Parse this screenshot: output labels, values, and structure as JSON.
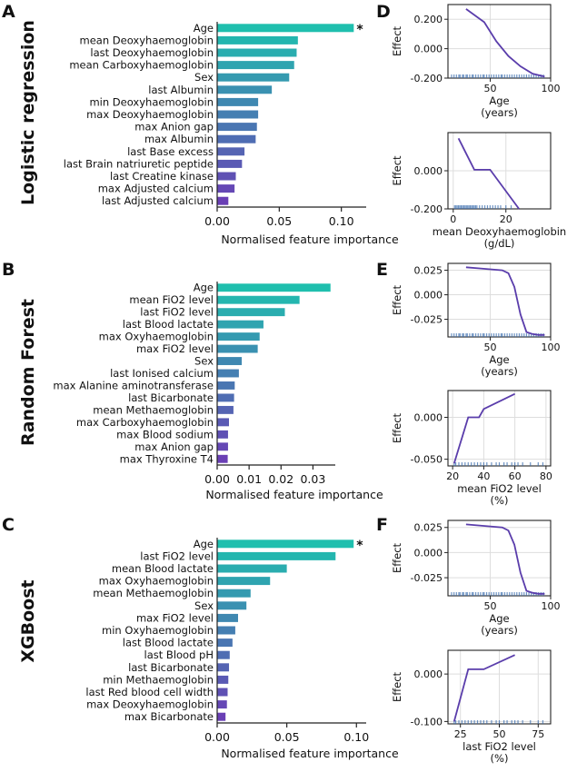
{
  "panel_letters": {
    "A": "A",
    "B": "B",
    "C": "C",
    "D": "D",
    "E": "E",
    "F": "F"
  },
  "row_labels": [
    "Logistic regression",
    "Random Forest",
    "XGBoost"
  ],
  "colors": {
    "bar_top": "#1fbfae",
    "bar_bottom": "#6a3fb5",
    "line": "#5a3dab",
    "rug": "#3d6fb0",
    "grid": "#dddddd",
    "axis": "#222222"
  },
  "chart_data": [
    {
      "id": "A",
      "type": "bar",
      "orientation": "horizontal",
      "categories": [
        "Age",
        "mean Deoxyhaemoglobin",
        "last Deoxyhaemoglobin",
        "mean Carboxyhaemoglobin",
        "Sex",
        "last Albumin",
        "min Deoxyhaemoglobin",
        "max Deoxyhaemoglobin",
        "max Anion gap",
        "max Albumin",
        "last Base excess",
        "last Brain natriuretic peptide",
        "last Creatine kinase",
        "max Adjusted calcium",
        "last Adjusted calcium"
      ],
      "values": [
        0.11,
        0.065,
        0.064,
        0.062,
        0.058,
        0.044,
        0.033,
        0.033,
        0.032,
        0.031,
        0.022,
        0.02,
        0.015,
        0.014,
        0.009
      ],
      "xlim": [
        0,
        0.12
      ],
      "xticks": [
        0.0,
        0.05,
        0.1
      ],
      "xticklabels": [
        "0.00",
        "0.05",
        "0.10"
      ],
      "xlabel": "Normalised feature importance",
      "marker": "*"
    },
    {
      "id": "B",
      "type": "bar",
      "orientation": "horizontal",
      "categories": [
        "Age",
        "mean FiO2 level",
        "last FiO2 level",
        "last Blood lactate",
        "max Oxyhaemoglobin",
        "max FiO2 level",
        "Sex",
        "last Ionised calcium",
        "max Alanine aminotransferase",
        "last Bicarbonate",
        "mean Methaemoglobin",
        "max Carboxyhaemoglobin",
        "max Blood sodium",
        "max Anion gap",
        "max Thyroxine T4"
      ],
      "values": [
        0.0355,
        0.0258,
        0.0212,
        0.0145,
        0.0133,
        0.0127,
        0.0077,
        0.0068,
        0.0055,
        0.0053,
        0.0051,
        0.0037,
        0.0034,
        0.0034,
        0.0033
      ],
      "xlim": [
        0,
        0.037
      ],
      "xticks": [
        0.0,
        0.01,
        0.02,
        0.03
      ],
      "xticklabels": [
        "0.00",
        "0.01",
        "0.02",
        "0.03"
      ],
      "xlabel": "Normalised feature importance"
    },
    {
      "id": "C",
      "type": "bar",
      "orientation": "horizontal",
      "categories": [
        "Age",
        "last FiO2 level",
        "mean Blood lactate",
        "max Oxyhaemoglobin",
        "mean Methaemoglobin",
        "Sex",
        "max FiO2 level",
        "min Oxyhaemoglobin",
        "last Blood lactate",
        "last Blood pH",
        "last Bicarbonate",
        "min Methaemoglobin",
        "last Red blood cell width",
        "max Deoxyhaemoglobin",
        "max Bicarbonate"
      ],
      "values": [
        0.098,
        0.085,
        0.05,
        0.038,
        0.024,
        0.021,
        0.015,
        0.013,
        0.011,
        0.009,
        0.0085,
        0.008,
        0.0075,
        0.007,
        0.006
      ],
      "xlim": [
        0,
        0.107
      ],
      "xticks": [
        0.0,
        0.05,
        0.1
      ],
      "xticklabels": [
        "0.00",
        "0.05",
        "0.10"
      ],
      "xlabel": "Normalised feature importance",
      "marker": "*"
    },
    {
      "id": "D1",
      "type": "line",
      "x": [
        30,
        45,
        55,
        65,
        75,
        85,
        95
      ],
      "y": [
        0.27,
        0.18,
        0.05,
        -0.05,
        -0.12,
        -0.17,
        -0.19
      ],
      "xlim": [
        15,
        100
      ],
      "ylim": [
        -0.2,
        0.3
      ],
      "xticks": [
        50,
        100
      ],
      "yticks": [
        -0.2,
        0.0,
        0.2
      ],
      "xticklabels": [
        "50",
        "100"
      ],
      "yticklabels": [
        "-0.200",
        "0.000",
        "0.200"
      ],
      "xlabel": "Age",
      "xunit": "(years)",
      "ylabel": "Effect",
      "rug": [
        18,
        20,
        22,
        24,
        25,
        27,
        28,
        30,
        31,
        33,
        35,
        36,
        38,
        40,
        42,
        44,
        45,
        47,
        49,
        51,
        53,
        55,
        57,
        59,
        60,
        62,
        64,
        66,
        68,
        70,
        72,
        74,
        76,
        78,
        80,
        82,
        84,
        86,
        88,
        90,
        92,
        94
      ]
    },
    {
      "id": "D2",
      "type": "line",
      "x": [
        2,
        8,
        14,
        25
      ],
      "y": [
        0.17,
        0.005,
        0.005,
        -0.2
      ],
      "xlim": [
        -2,
        37
      ],
      "ylim": [
        -0.2,
        0.2
      ],
      "xticks": [
        0,
        20
      ],
      "yticks": [
        -0.2,
        0.0
      ],
      "xticklabels": [
        "0",
        "20"
      ],
      "yticklabels": [
        "-0.200",
        "0.000"
      ],
      "xlabel": "mean Deoxyhaemoglobin",
      "xunit": "(g/dL)",
      "ylabel": "Effect",
      "rug": [
        0.5,
        1,
        1.5,
        2,
        2.5,
        3,
        3.5,
        4,
        4.5,
        5,
        5.5,
        6,
        6.5,
        7,
        7.5,
        8,
        8.5,
        9,
        10,
        11,
        12,
        13,
        14,
        15,
        16,
        17,
        18,
        20,
        22
      ]
    },
    {
      "id": "E1",
      "type": "line",
      "x": [
        30,
        40,
        50,
        60,
        65,
        70,
        75,
        80,
        85,
        90,
        95
      ],
      "y": [
        0.028,
        0.027,
        0.026,
        0.025,
        0.022,
        0.008,
        -0.02,
        -0.038,
        -0.04,
        -0.041,
        -0.041
      ],
      "xlim": [
        15,
        100
      ],
      "ylim": [
        -0.043,
        0.032
      ],
      "xticks": [
        50,
        100
      ],
      "yticks": [
        -0.025,
        0.0,
        0.025
      ],
      "xticklabels": [
        "50",
        "100"
      ],
      "yticklabels": [
        "-0.025",
        "0.000",
        "0.025"
      ],
      "xlabel": "Age",
      "xunit": "(years)",
      "ylabel": "Effect",
      "rug": [
        18,
        20,
        22,
        24,
        25,
        27,
        28,
        30,
        31,
        33,
        35,
        36,
        38,
        40,
        42,
        44,
        45,
        47,
        49,
        51,
        53,
        55,
        57,
        59,
        60,
        62,
        64,
        66,
        68,
        70,
        72,
        74,
        76,
        78,
        80,
        82,
        84,
        86,
        88,
        90,
        92,
        94
      ]
    },
    {
      "id": "E2",
      "type": "line",
      "x": [
        21,
        30,
        37,
        40,
        60
      ],
      "y": [
        -0.055,
        0.0,
        0.0,
        0.01,
        0.028
      ],
      "xlim": [
        17,
        83
      ],
      "ylim": [
        -0.058,
        0.032
      ],
      "xticks": [
        20,
        40,
        60,
        80
      ],
      "yticks": [
        -0.05,
        0.0
      ],
      "xticklabels": [
        "20",
        "40",
        "60",
        "80"
      ],
      "yticklabels": [
        "-0.050",
        "0.000"
      ],
      "xlabel": "mean FiO2 level",
      "xunit": "(%)",
      "ylabel": "Effect",
      "rug": [
        21,
        22,
        24,
        26,
        28,
        30,
        32,
        34,
        36,
        38,
        40,
        42,
        45,
        48,
        50,
        53,
        55,
        58,
        60,
        62,
        65,
        70,
        75,
        78
      ]
    },
    {
      "id": "F1",
      "type": "line",
      "x": [
        30,
        40,
        50,
        60,
        65,
        70,
        75,
        80,
        85,
        90,
        95
      ],
      "y": [
        0.028,
        0.027,
        0.026,
        0.025,
        0.022,
        0.008,
        -0.02,
        -0.038,
        -0.04,
        -0.041,
        -0.041
      ],
      "xlim": [
        15,
        100
      ],
      "ylim": [
        -0.043,
        0.032
      ],
      "xticks": [
        50,
        100
      ],
      "yticks": [
        -0.025,
        0.0,
        0.025
      ],
      "xticklabels": [
        "50",
        "100"
      ],
      "yticklabels": [
        "-0.025",
        "0.000",
        "0.025"
      ],
      "xlabel": "Age",
      "xunit": "(years)",
      "ylabel": "Effect",
      "rug": [
        18,
        20,
        22,
        24,
        25,
        27,
        28,
        30,
        31,
        33,
        35,
        36,
        38,
        40,
        42,
        44,
        45,
        47,
        49,
        51,
        53,
        55,
        57,
        59,
        60,
        62,
        64,
        66,
        68,
        70,
        72,
        74,
        76,
        78,
        80,
        82,
        84,
        86,
        88,
        90,
        92,
        94
      ]
    },
    {
      "id": "F2",
      "type": "line",
      "x": [
        21,
        30,
        40,
        60
      ],
      "y": [
        -0.1,
        0.01,
        0.01,
        0.04
      ],
      "xlim": [
        17,
        83
      ],
      "ylim": [
        -0.105,
        0.05
      ],
      "xticks": [
        25,
        50,
        75
      ],
      "yticks": [
        -0.1,
        0.0
      ],
      "xticklabels": [
        "25",
        "50",
        "75"
      ],
      "yticklabels": [
        "-0.100",
        "0.000"
      ],
      "xlabel": "last FiO2 level",
      "xunit": "(%)",
      "ylabel": "Effect",
      "rug": [
        21,
        22,
        24,
        26,
        28,
        30,
        32,
        34,
        36,
        38,
        40,
        42,
        45,
        48,
        50,
        53,
        55,
        58,
        60,
        62,
        65,
        70,
        75,
        78
      ]
    }
  ]
}
